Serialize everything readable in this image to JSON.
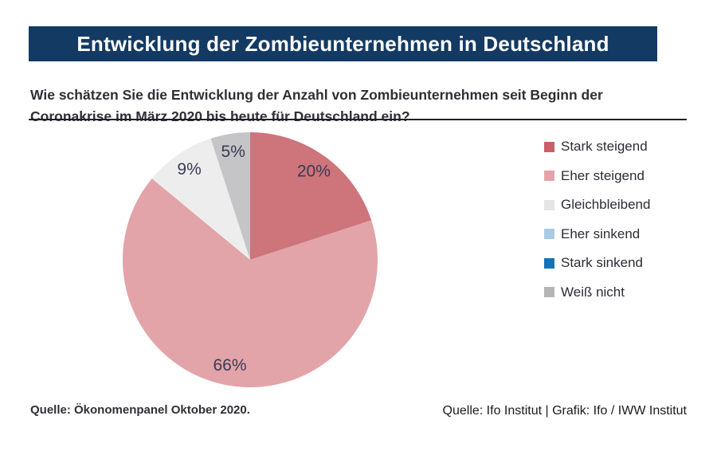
{
  "header": {
    "title": "Entwicklung der Zombieunternehmen in Deutschland",
    "bg_color": "#133a63",
    "text_color": "#ffffff"
  },
  "question": "Wie schätzen Sie die Entwicklung der Anzahl von Zombieunternehmen seit Beginn der Coronakrise im März 2020 bis heute für Deutschland ein?",
  "chart_data": {
    "type": "pie",
    "title": "Entwicklung der Zombieunternehmen in Deutschland",
    "start_angle_deg": -90,
    "direction": "clockwise",
    "slice_label_color": "#3a3a55",
    "slices": [
      {
        "label": "Stark steigend",
        "value": 20,
        "display": "20%",
        "color": "#ce747b"
      },
      {
        "label": "Eher steigend",
        "value": 66,
        "display": "66%",
        "color": "#e2a4a8"
      },
      {
        "label": "Gleichbleibend",
        "value": 9,
        "display": "9%",
        "color": "#ededee"
      },
      {
        "label": "Weiß nicht",
        "value": 5,
        "display": "5%",
        "color": "#c5c5c7"
      }
    ],
    "legend_position": "right",
    "legend": [
      {
        "label": "Stark steigend",
        "color": "#c76068"
      },
      {
        "label": "Eher steigend",
        "color": "#e2a4a8"
      },
      {
        "label": "Gleichbleibend",
        "color": "#e4e4e4"
      },
      {
        "label": "Eher sinkend",
        "color": "#a9cbe6"
      },
      {
        "label": "Stark sinkend",
        "color": "#1273b9"
      },
      {
        "label": "Weiß nicht",
        "color": "#b5b5b5"
      }
    ]
  },
  "footer": {
    "source_left": "Quelle: Ökonomenpanel Oktober 2020.",
    "source_right": "Quelle: Ifo Institut | Grafik: Ifo / IWW Institut"
  }
}
